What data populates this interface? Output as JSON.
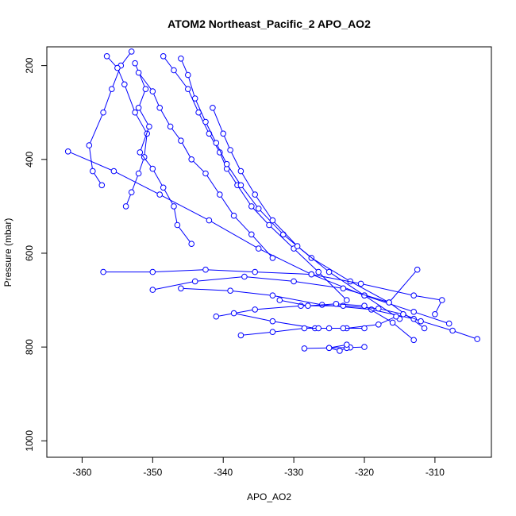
{
  "chart_data": {
    "type": "line",
    "title": "ATOM2 Northeast_Pacific_2 APO_AO2",
    "xlabel": "APO_AO2",
    "ylabel": "Pressure (mbar)",
    "xlim": [
      -365,
      -302
    ],
    "ylim": [
      1035,
      160
    ],
    "y_reversed": true,
    "x_ticks": [
      -360,
      -350,
      -340,
      -330,
      -320,
      -310
    ],
    "y_ticks": [
      200,
      400,
      600,
      800,
      1000
    ],
    "grid": false,
    "legend": "none",
    "marker": "open-circle",
    "color": "#0000ff",
    "series": [
      {
        "x": [
          -353.0,
          -354.5,
          -355.8,
          -357.0,
          -359.0,
          -358.5,
          -357.2
        ],
        "y": [
          170,
          200,
          250,
          300,
          370,
          425,
          455
        ]
      },
      {
        "x": [
          -356.5,
          -355.0,
          -354.0,
          -352.5,
          -350.8,
          -351.2,
          -352.0,
          -353.0,
          -353.8
        ],
        "y": [
          180,
          205,
          240,
          300,
          345,
          395,
          430,
          470,
          500
        ]
      },
      {
        "x": [
          -352.5,
          -351.0,
          -352.0,
          -350.5,
          -351.8,
          -350.0,
          -348.5,
          -347.0,
          -346.5,
          -344.5
        ],
        "y": [
          195,
          250,
          290,
          330,
          385,
          420,
          460,
          500,
          540,
          580
        ]
      },
      {
        "x": [
          -352.0,
          -350.0,
          -349.0,
          -347.5,
          -346.0,
          -344.5,
          -342.5,
          -340.5,
          -338.5,
          -336.0,
          -333.0
        ],
        "y": [
          215,
          255,
          290,
          330,
          360,
          400,
          430,
          475,
          520,
          560,
          610
        ]
      },
      {
        "x": [
          -348.5,
          -347.0,
          -345.0,
          -343.5,
          -342.0,
          -340.5,
          -339.5,
          -338.0,
          -336.0,
          -333.5,
          -330.0,
          -326.5,
          -322.5
        ],
        "y": [
          180,
          210,
          250,
          300,
          345,
          385,
          420,
          455,
          500,
          540,
          590,
          640,
          700
        ]
      },
      {
        "x": [
          -346.0,
          -345.0,
          -344.0,
          -342.5,
          -341.0,
          -339.5,
          -337.5,
          -335.0,
          -331.5,
          -327.5,
          -322.0,
          -316.5,
          -311.5
        ],
        "y": [
          185,
          220,
          270,
          320,
          365,
          410,
          455,
          505,
          560,
          610,
          660,
          705,
          760
        ]
      },
      {
        "x": [
          -341.5,
          -340.0,
          -339.0,
          -337.5,
          -335.5,
          -333.0,
          -329.5,
          -325.0,
          -320.0,
          -315.0
        ],
        "y": [
          290,
          345,
          380,
          425,
          475,
          530,
          585,
          640,
          690,
          740
        ]
      },
      {
        "x": [
          -362.0,
          -355.5,
          -349.0,
          -342.0,
          -335.0,
          -327.5,
          -320.0,
          -313.0,
          -308.0
        ],
        "y": [
          383,
          425,
          475,
          530,
          590,
          645,
          690,
          725,
          750
        ]
      },
      {
        "x": [
          -357.0,
          -350.0,
          -342.5,
          -335.5,
          -327.5,
          -320.5,
          -313.0,
          -309.0,
          -310.0
        ],
        "y": [
          640,
          640,
          635,
          640,
          645,
          665,
          690,
          700,
          730
        ]
      },
      {
        "x": [
          -350.0,
          -344.0,
          -337.0,
          -330.0,
          -323.0,
          -316.5,
          -312.5
        ],
        "y": [
          678,
          660,
          650,
          660,
          675,
          705,
          635
        ]
      },
      {
        "x": [
          -346.0,
          -339.0,
          -333.0,
          -326.0,
          -319.0,
          -313.0,
          -307.5,
          -304.0
        ],
        "y": [
          675,
          680,
          690,
          710,
          720,
          740,
          765,
          783
        ]
      },
      {
        "x": [
          -341.0,
          -335.5,
          -329.0,
          -323.0,
          -318.0,
          -314.5,
          -312.0
        ],
        "y": [
          735,
          720,
          712,
          712,
          718,
          730,
          745
        ]
      },
      {
        "x": [
          -332.0,
          -328.0,
          -324.0,
          -320.0,
          -316.0,
          -313.0
        ],
        "y": [
          700,
          712,
          708,
          712,
          748,
          785
        ]
      },
      {
        "x": [
          -338.5,
          -333.0,
          -327.0,
          -322.5,
          -318.0,
          -315.5
        ],
        "y": [
          728,
          745,
          760,
          760,
          752,
          735
        ]
      },
      {
        "x": [
          -337.5,
          -333.0,
          -328.5,
          -326.5,
          -325.0,
          -323.0,
          -320.0
        ],
        "y": [
          775,
          768,
          760,
          760,
          760,
          760,
          760
        ]
      },
      {
        "x": [
          -328.5,
          -325.0,
          -322.0,
          -320.0
        ],
        "y": [
          803,
          802,
          801,
          800
        ]
      },
      {
        "x": [
          -322.5,
          -323.5,
          -325.0,
          -322.5
        ],
        "y": [
          802,
          808,
          802,
          795
        ]
      }
    ]
  }
}
